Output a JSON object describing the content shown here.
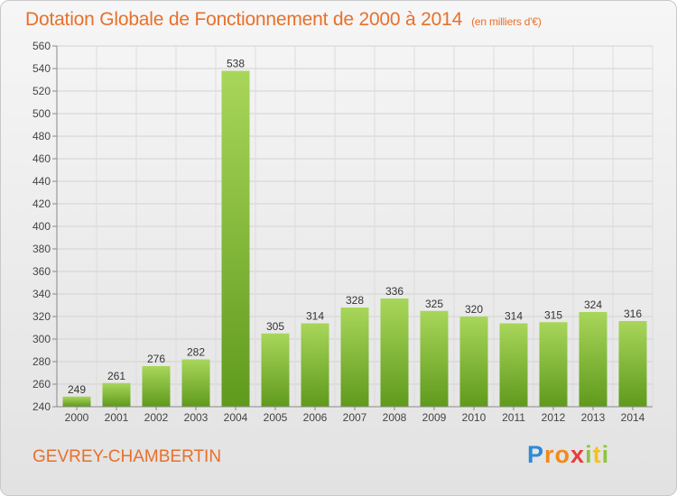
{
  "title": "Dotation Globale de Fonctionnement de 2000 à 2014",
  "subtitle": "(en milliers d'€)",
  "commune": "GEVREY-CHAMBERTIN",
  "logo": {
    "letters": [
      "P",
      "r",
      "o",
      "x",
      "i",
      "t",
      "i"
    ],
    "colors": [
      "#2f8ad8",
      "#f08a1c",
      "#f08a1c",
      "#e83c3c",
      "#8cc63e",
      "#f5c21b",
      "#8cc63e"
    ]
  },
  "colors": {
    "accent": "#e8702a",
    "bar_light": "#a8d65a",
    "bar_dark": "#5f9a1c"
  },
  "chart_data": {
    "type": "bar",
    "categories": [
      "2000",
      "2001",
      "2002",
      "2003",
      "2004",
      "2005",
      "2006",
      "2007",
      "2008",
      "2009",
      "2010",
      "2011",
      "2012",
      "2013",
      "2014"
    ],
    "values": [
      249,
      261,
      276,
      282,
      538,
      305,
      314,
      328,
      336,
      325,
      320,
      314,
      315,
      324,
      316
    ],
    "ylim": [
      240,
      560
    ],
    "yticks": [
      240,
      260,
      280,
      300,
      320,
      340,
      360,
      380,
      400,
      420,
      440,
      460,
      480,
      500,
      520,
      540,
      560
    ],
    "grid": true,
    "title": "Dotation Globale de Fonctionnement de 2000 à 2014",
    "subtitle": "(en milliers d'€)"
  }
}
